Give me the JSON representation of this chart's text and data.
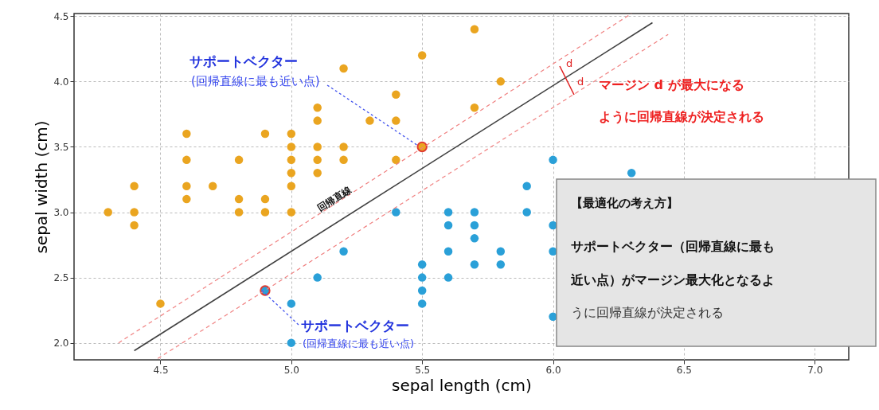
{
  "chart_data": {
    "type": "scatter",
    "xlabel": "sepal length (cm)",
    "ylabel": "sepal width (cm)",
    "xlim": [
      4.17,
      7.13
    ],
    "ylim": [
      1.87,
      4.52
    ],
    "xticks": [
      {
        "value": 4.5,
        "label": "4.5"
      },
      {
        "value": 5,
        "label": "5.0"
      },
      {
        "value": 5.5,
        "label": "5.5"
      },
      {
        "value": 6,
        "label": "6.0"
      },
      {
        "value": 6.5,
        "label": "6.5"
      },
      {
        "value": 7,
        "label": "7.0"
      }
    ],
    "yticks": [
      {
        "value": 2,
        "label": "2.0"
      },
      {
        "value": 2.5,
        "label": "2.5"
      },
      {
        "value": 3,
        "label": "3.0"
      },
      {
        "value": 3.5,
        "label": "3.5"
      },
      {
        "value": 4,
        "label": "4.0"
      },
      {
        "value": 4.5,
        "label": "4.5"
      }
    ],
    "grid": true,
    "marker": "circle",
    "series": [
      {
        "color": "#eaa520",
        "x": [
          5.1,
          4.9,
          4.7,
          4.6,
          5.0,
          5.4,
          4.6,
          5.0,
          4.4,
          4.9,
          5.4,
          4.8,
          4.8,
          4.3,
          5.8,
          5.7,
          5.7,
          5.1,
          5.4,
          5.1,
          4.6,
          5.1,
          5.0,
          5.2,
          5.2,
          4.8,
          5.2,
          5.5,
          5.0,
          5.5,
          4.4,
          5.1,
          5.0,
          4.5,
          4.4,
          4.6,
          5.3,
          5.0,
          4.9
        ],
        "values": [
          3.5,
          3.0,
          3.2,
          3.1,
          3.6,
          3.9,
          3.4,
          3.4,
          2.9,
          3.1,
          3.7,
          3.4,
          3.0,
          3.0,
          4.0,
          4.4,
          3.8,
          3.8,
          3.4,
          3.7,
          3.6,
          3.3,
          3.0,
          3.5,
          3.4,
          3.1,
          4.1,
          4.2,
          3.2,
          3.5,
          3.0,
          3.4,
          3.5,
          2.3,
          3.2,
          3.2,
          3.7,
          3.3,
          3.6
        ]
      },
      {
        "color": "#2aa0d8",
        "x": [
          5.5,
          5.7,
          4.9,
          5.2,
          5.0,
          5.9,
          6.0,
          5.6,
          5.6,
          5.8,
          5.6,
          5.9,
          6.0,
          5.7,
          5.5,
          6.0,
          5.4,
          6.0,
          5.5,
          5.5,
          5.8,
          5.0,
          5.6,
          5.7,
          5.7,
          5.1,
          6.3
        ],
        "values": [
          2.3,
          2.8,
          2.4,
          2.7,
          2.0,
          3.0,
          2.2,
          2.9,
          3.0,
          2.7,
          2.5,
          3.2,
          2.9,
          2.6,
          2.4,
          2.7,
          3.0,
          3.4,
          2.5,
          2.6,
          2.6,
          2.3,
          2.7,
          3.0,
          2.9,
          2.5,
          3.3
        ]
      },
      {
        "color": "#e03a2f",
        "x": [
          5.5,
          4.9
        ],
        "values": [
          3.5,
          2.4
        ]
      },
      {
        "type": "line",
        "color": "#404040",
        "line_style": "solid",
        "marker": "none",
        "x": [
          4.4,
          6.38
        ],
        "values": [
          1.94,
          4.45
        ]
      },
      {
        "type": "line",
        "color": "#f08080",
        "line_style": "dashed",
        "marker": "none",
        "x": [
          4.34,
          6.3
        ],
        "values": [
          2.0,
          4.52
        ]
      },
      {
        "type": "line",
        "color": "#f08080",
        "line_style": "dashed",
        "marker": "none",
        "x": [
          4.49,
          6.44
        ],
        "values": [
          1.88,
          4.36
        ]
      }
    ],
    "annotations": [
      "サポートベクター",
      {
        "text": "(回帰直線に最も近い点)",
        "x": 5.5,
        "y": 3.5
      },
      {
        "text": "サポートベクター",
        "x": 4.9,
        "y": 2.4
      },
      "(回帰直線に最も近い点)",
      "回帰直線",
      "d",
      "d",
      "マージン d が最大になる",
      "ように回帰直線が決定される",
      "【最適化の考え方】",
      "サポートベクター（回帰直線に最も",
      "近い点）がマージン最大化となるよ",
      "うに回帰直線が決定される"
    ]
  }
}
